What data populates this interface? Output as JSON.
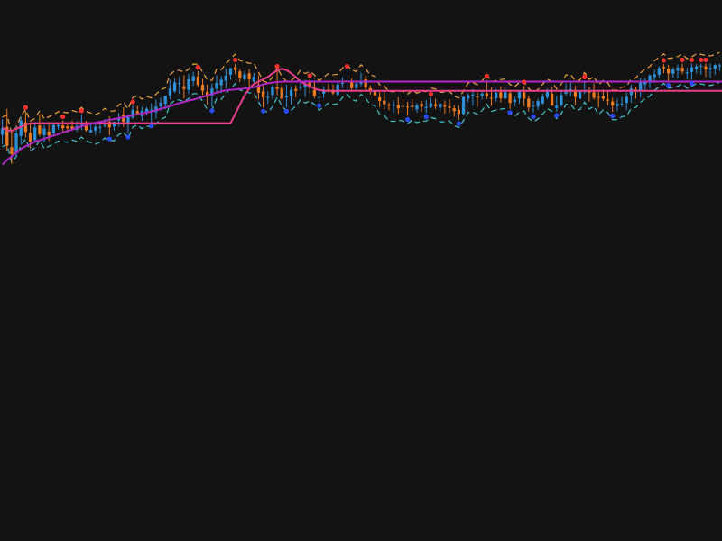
{
  "chart_data": {
    "type": "candlestick",
    "title": "",
    "xlabel": "",
    "ylabel": "",
    "grid": false,
    "legend": "none",
    "x": [
      0,
      1,
      2,
      3,
      4,
      5,
      6,
      7,
      8,
      9,
      10,
      11,
      12,
      13,
      14,
      15,
      16,
      17,
      18,
      19,
      20,
      21,
      22,
      23,
      24,
      25,
      26,
      27,
      28,
      29,
      30,
      31,
      32,
      33,
      34,
      35,
      36,
      37,
      38,
      39,
      40,
      41,
      42,
      43,
      44,
      45,
      46,
      47,
      48,
      49,
      50,
      51,
      52,
      53,
      54,
      55,
      56,
      57,
      58,
      59,
      60,
      61,
      62,
      63,
      64,
      65,
      66,
      67,
      68,
      69,
      70,
      71,
      72,
      73,
      74,
      75,
      76,
      77,
      78,
      79,
      80,
      81,
      82,
      83,
      84,
      85,
      86,
      87,
      88,
      89,
      90,
      91,
      92,
      93,
      94,
      95,
      96,
      97,
      98,
      99,
      100,
      101,
      102,
      103,
      104,
      105,
      106,
      107,
      108,
      109,
      110,
      111,
      112,
      113,
      114,
      115,
      116,
      117,
      118,
      119,
      120,
      121,
      122,
      123,
      124,
      125,
      126,
      127,
      128,
      129,
      130,
      131,
      132,
      133,
      134,
      135,
      136,
      137,
      138,
      139,
      140,
      141,
      142,
      143,
      144,
      145,
      146,
      147,
      148,
      149,
      150,
      151,
      152,
      153,
      154,
      155,
      156,
      157,
      158,
      159
    ],
    "ylim": [
      10,
      90
    ],
    "candles": [
      [
        74.5,
        77.8,
        72.5,
        75.9
      ],
      [
        76.2,
        80.1,
        71.0,
        72.1
      ],
      [
        71.8,
        75.2,
        68.2,
        70.3
      ],
      [
        70.5,
        76.3,
        69.6,
        74.8
      ],
      [
        74.2,
        78.5,
        72.3,
        77.6
      ],
      [
        77.2,
        79.6,
        73.9,
        75.1
      ],
      [
        74.9,
        77.0,
        71.5,
        73.0
      ],
      [
        73.3,
        76.8,
        72.8,
        76.1
      ],
      [
        76.5,
        78.9,
        74.1,
        74.6
      ],
      [
        74.4,
        76.6,
        72.8,
        75.8
      ],
      [
        75.2,
        77.2,
        73.2,
        74.3
      ],
      [
        74.8,
        77.2,
        74.2,
        76.6
      ],
      [
        76.3,
        77.0,
        75.6,
        76.6
      ],
      [
        76.5,
        77.6,
        74.8,
        75.9
      ],
      [
        76.3,
        77.1,
        75.0,
        75.9
      ],
      [
        76.3,
        77.6,
        75.5,
        75.6
      ],
      [
        75.6,
        77.4,
        75.1,
        76.4
      ],
      [
        76.6,
        78.9,
        75.5,
        76.7
      ],
      [
        76.6,
        77.5,
        75.2,
        75.5
      ],
      [
        75.0,
        77.1,
        74.9,
        75.5
      ],
      [
        75.4,
        76.8,
        74.5,
        76.2
      ],
      [
        76.0,
        77.4,
        74.8,
        76.2
      ],
      [
        76.4,
        77.9,
        76.1,
        76.6
      ],
      [
        77.3,
        78.5,
        74.4,
        76.1
      ],
      [
        76.3,
        77.4,
        75.4,
        77.3
      ],
      [
        77.6,
        79.2,
        76.3,
        78.2
      ],
      [
        78.8,
        80.4,
        76.2,
        77.3
      ],
      [
        77.1,
        78.9,
        74.8,
        78.7
      ],
      [
        78.2,
        80.8,
        77.9,
        79.9
      ],
      [
        79.6,
        80.8,
        78.8,
        79.1
      ],
      [
        78.5,
        80.5,
        77.5,
        79.7
      ],
      [
        79.4,
        80.5,
        78.7,
        80.1
      ],
      [
        79.7,
        81.3,
        77.2,
        79.9
      ],
      [
        79.4,
        82.1,
        78.0,
        80.6
      ],
      [
        80.6,
        82.5,
        79.6,
        81.4
      ],
      [
        81.2,
        82.9,
        80.0,
        82.9
      ],
      [
        83.0,
        86.4,
        82.2,
        84.5
      ],
      [
        83.9,
        86.7,
        83.6,
        85.8
      ],
      [
        85.6,
        87.1,
        83.4,
        85.7
      ],
      [
        85.0,
        87.4,
        82.3,
        84.4
      ],
      [
        84.2,
        87.7,
        83.3,
        86.5
      ],
      [
        86.1,
        88.1,
        85.1,
        87.2
      ],
      [
        87.1,
        88.3,
        84.8,
        85.3
      ],
      [
        85.3,
        86.6,
        83.1,
        84.0
      ],
      [
        83.8,
        85.4,
        81.0,
        82.7
      ],
      [
        83.0,
        85.6,
        80.5,
        84.5
      ],
      [
        84.5,
        87.4,
        83.6,
        85.7
      ],
      [
        85.2,
        87.2,
        83.5,
        86.4
      ],
      [
        86.2,
        88.9,
        84.5,
        87.3
      ],
      [
        87.5,
        89.0,
        86.4,
        88.9
      ],
      [
        89.1,
        89.9,
        87.6,
        88.5
      ],
      [
        88.2,
        88.8,
        85.9,
        86.8
      ],
      [
        86.5,
        88.2,
        86.1,
        87.6
      ],
      [
        87.8,
        88.7,
        84.8,
        86.5
      ],
      [
        86.0,
        87.9,
        85.7,
        87.1
      ],
      [
        85.4,
        87.4,
        82.2,
        83.6
      ],
      [
        83.9,
        85.5,
        80.4,
        82.6
      ],
      [
        82.5,
        83.9,
        81.2,
        82.7
      ],
      [
        83.1,
        85.3,
        82.2,
        84.9
      ],
      [
        84.9,
        88.5,
        83.1,
        84.4
      ],
      [
        84.6,
        86.1,
        81.8,
        82.3
      ],
      [
        82.6,
        85.3,
        80.4,
        82.9
      ],
      [
        82.9,
        85.0,
        81.0,
        84.2
      ],
      [
        84.4,
        85.2,
        82.6,
        84.0
      ],
      [
        84.6,
        86.4,
        84.1,
        84.9
      ],
      [
        84.8,
        86.4,
        82.7,
        85.6
      ],
      [
        85.8,
        86.5,
        83.5,
        84.7
      ],
      [
        84.2,
        86.1,
        82.4,
        82.9
      ],
      [
        82.6,
        84.4,
        81.6,
        82.7
      ],
      [
        83.4,
        85.0,
        82.5,
        84.3
      ],
      [
        84.3,
        85.5,
        83.6,
        84.2
      ],
      [
        84.2,
        85.4,
        83.1,
        83.5
      ],
      [
        83.2,
        85.9,
        82.9,
        85.4
      ],
      [
        85.5,
        86.9,
        84.6,
        85.7
      ],
      [
        85.9,
        88.5,
        84.4,
        86.2
      ],
      [
        86.0,
        86.7,
        84.0,
        84.6
      ],
      [
        84.6,
        86.0,
        83.9,
        85.6
      ],
      [
        85.5,
        87.9,
        85.0,
        86.1
      ],
      [
        86.5,
        87.3,
        83.9,
        84.7
      ],
      [
        84.6,
        85.2,
        83.2,
        84.0
      ],
      [
        84.1,
        85.8,
        82.2,
        83.0
      ],
      [
        82.6,
        83.7,
        80.5,
        81.8
      ],
      [
        81.9,
        83.7,
        80.0,
        81.1
      ],
      [
        81.0,
        81.5,
        79.8,
        80.9
      ],
      [
        80.8,
        82.0,
        79.2,
        81.0
      ],
      [
        80.9,
        82.6,
        79.0,
        80.2
      ],
      [
        80.7,
        82.2,
        79.2,
        80.6
      ],
      [
        80.6,
        81.6,
        78.6,
        80.4
      ],
      [
        80.8,
        82.1,
        79.7,
        80.5
      ],
      [
        80.0,
        81.3,
        79.3,
        80.8
      ],
      [
        81.2,
        81.8,
        79.5,
        80.6
      ],
      [
        80.3,
        82.1,
        79.2,
        80.5
      ],
      [
        80.5,
        82.5,
        80.3,
        81.3
      ],
      [
        81.1,
        82.3,
        80.1,
        80.7
      ],
      [
        80.4,
        81.4,
        79.6,
        81.2
      ],
      [
        80.9,
        81.9,
        79.1,
        80.6
      ],
      [
        80.6,
        82.2,
        79.2,
        80.3
      ],
      [
        80.2,
        80.9,
        78.4,
        79.6
      ],
      [
        79.9,
        80.8,
        77.7,
        79.0
      ],
      [
        79.0,
        82.7,
        78.8,
        82.7
      ],
      [
        82.3,
        83.5,
        81.5,
        83.1
      ],
      [
        82.9,
        84.4,
        80.8,
        83.2
      ],
      [
        82.8,
        83.6,
        80.6,
        82.6
      ],
      [
        82.9,
        83.8,
        82.1,
        83.4
      ],
      [
        83.5,
        86.4,
        82.2,
        82.8
      ],
      [
        82.5,
        84.7,
        80.8,
        82.3
      ],
      [
        82.4,
        84.4,
        81.7,
        83.6
      ],
      [
        83.7,
        85.0,
        81.5,
        82.4
      ],
      [
        82.4,
        84.5,
        82.2,
        83.7
      ],
      [
        83.5,
        84.3,
        80.1,
        81.4
      ],
      [
        81.6,
        82.8,
        80.6,
        82.1
      ],
      [
        82.3,
        84.0,
        81.2,
        83.8
      ],
      [
        83.7,
        85.1,
        80.6,
        82.3
      ],
      [
        82.3,
        83.0,
        79.5,
        80.4
      ],
      [
        80.8,
        81.8,
        79.2,
        80.8
      ],
      [
        80.6,
        82.3,
        79.9,
        81.8
      ],
      [
        81.3,
        83.4,
        81.0,
        82.7
      ],
      [
        82.6,
        84.5,
        82.2,
        83.8
      ],
      [
        83.4,
        84.8,
        80.8,
        80.8
      ],
      [
        80.3,
        82.9,
        79.5,
        80.8
      ],
      [
        80.9,
        83.9,
        80.6,
        83.1
      ],
      [
        83.4,
        85.6,
        82.9,
        84.2
      ],
      [
        84.4,
        85.8,
        82.8,
        84.4
      ],
      [
        84.1,
        85.1,
        80.9,
        82.7
      ],
      [
        82.3,
        84.1,
        82.2,
        84.0
      ],
      [
        83.8,
        86.2,
        83.3,
        83.9
      ],
      [
        84.1,
        84.8,
        81.7,
        83.6
      ],
      [
        83.7,
        85.6,
        82.1,
        82.5
      ],
      [
        82.7,
        83.7,
        80.4,
        82.6
      ],
      [
        82.8,
        84.3,
        81.8,
        82.3
      ],
      [
        82.1,
        84.1,
        80.9,
        81.9
      ],
      [
        81.7,
        82.5,
        79.4,
        80.8
      ],
      [
        80.7,
        82.3,
        79.6,
        81.2
      ],
      [
        81.2,
        82.7,
        80.5,
        81.2
      ],
      [
        81.4,
        83.7,
        79.8,
        82.7
      ],
      [
        83.1,
        85.3,
        81.4,
        84.5
      ],
      [
        84.3,
        84.9,
        82.3,
        83.9
      ],
      [
        84.1,
        86.8,
        82.6,
        85.8
      ],
      [
        85.4,
        86.8,
        84.2,
        86.1
      ],
      [
        85.8,
        87.6,
        84.5,
        87.3
      ],
      [
        87.0,
        88.6,
        86.0,
        87.6
      ],
      [
        87.5,
        89.3,
        86.8,
        88.9
      ],
      [
        89.2,
        89.8,
        87.8,
        88.9
      ],
      [
        88.8,
        89.6,
        86.0,
        87.8
      ],
      [
        87.7,
        89.1,
        86.8,
        88.7
      ],
      [
        88.4,
        89.7,
        86.7,
        89.0
      ],
      [
        89.0,
        89.9,
        87.6,
        88.2
      ],
      [
        88.0,
        89.0,
        86.5,
        88.0
      ],
      [
        88.1,
        89.9,
        86.4,
        89.1
      ],
      [
        88.7,
        89.8,
        87.8,
        89.3
      ],
      [
        89.4,
        89.9,
        87.5,
        89.4
      ],
      [
        89.3,
        89.9,
        87.0,
        88.7
      ],
      [
        88.6,
        89.9,
        86.8,
        88.9
      ],
      [
        88.8,
        89.8,
        87.5,
        89.6
      ],
      [
        89.5,
        89.9,
        88.3,
        89.5
      ]
    ],
    "series": [
      {
        "type": "line",
        "color": "#e83e8c",
        "values": [
          76,
          75.5,
          75.3,
          75.8,
          76.2,
          76.7,
          77,
          77,
          77,
          77,
          77,
          77,
          77,
          77,
          77,
          77,
          77,
          77,
          77,
          77,
          77,
          77,
          77,
          77,
          77,
          77,
          77,
          77,
          77,
          77,
          77,
          77,
          77,
          77,
          77,
          77,
          77,
          77,
          77,
          77,
          77,
          77,
          77,
          77,
          77,
          77,
          77,
          77,
          77,
          77,
          79,
          81,
          83,
          84.5,
          85.5,
          86,
          86.5,
          87,
          87.8,
          88.4,
          88.8,
          88.5,
          87.8,
          87,
          86,
          85.5,
          85,
          84.5,
          84.2,
          84,
          84,
          84,
          84,
          84,
          84,
          84,
          84,
          84,
          84,
          84,
          84,
          84,
          84,
          84,
          84,
          84,
          84,
          84,
          84,
          84,
          84,
          84,
          84,
          84,
          84,
          84,
          84,
          84,
          84,
          84,
          84,
          84,
          84,
          84,
          84,
          84,
          84,
          84,
          84,
          84,
          84,
          84,
          84,
          84,
          84,
          84,
          84,
          84,
          84,
          84,
          84,
          84,
          84,
          84,
          84,
          84,
          84,
          84,
          84,
          84,
          84,
          84,
          84,
          84,
          84,
          84,
          84,
          84,
          84,
          84,
          84,
          84,
          84,
          84,
          84,
          84,
          84,
          84,
          84,
          84,
          84,
          84,
          84,
          84,
          84,
          84,
          84,
          84,
          84,
          84
        ]
      },
      {
        "type": "line",
        "color": "#b027c6",
        "values": [
          68,
          69,
          69.8,
          70.6,
          71.4,
          72,
          72.5,
          73,
          73.3,
          73.6,
          74,
          74.3,
          74.6,
          75,
          75.3,
          75.6,
          76,
          76.3,
          76.6,
          76.9,
          77.1,
          77.3,
          77.5,
          77.7,
          77.9,
          78.1,
          78.3,
          78.5,
          78.7,
          78.9,
          79.1,
          79.3,
          79.5,
          79.8,
          80.1,
          80.4,
          80.7,
          81,
          81.3,
          81.6,
          81.9,
          82.1,
          82.4,
          82.7,
          83,
          83.3,
          83.6,
          83.9,
          84.1,
          84.2,
          84.3,
          84.4,
          84.5,
          84.6,
          84.8,
          85.1,
          85.4,
          85.6,
          85.8,
          85.9,
          86,
          86,
          86,
          86,
          86,
          86,
          86,
          86,
          86,
          86,
          86,
          86,
          86,
          86,
          86,
          86,
          86,
          86,
          86,
          86,
          86,
          86,
          86,
          86,
          86,
          86,
          86,
          86,
          86,
          86,
          86,
          86,
          86,
          86,
          86,
          86,
          86,
          86,
          86,
          86,
          86,
          86,
          86,
          86,
          86,
          86,
          86,
          86,
          86,
          86,
          86,
          86,
          86,
          86,
          86,
          86,
          86,
          86,
          86,
          86,
          86,
          86,
          86,
          86,
          86,
          86,
          86,
          86,
          86,
          86,
          86,
          86,
          86,
          86,
          86,
          86,
          86,
          86,
          86,
          86,
          86,
          86,
          86,
          86,
          86,
          86,
          86,
          86,
          86,
          86,
          86,
          86,
          86,
          86,
          86,
          86,
          86,
          86,
          86,
          86
        ]
      }
    ]
  }
}
